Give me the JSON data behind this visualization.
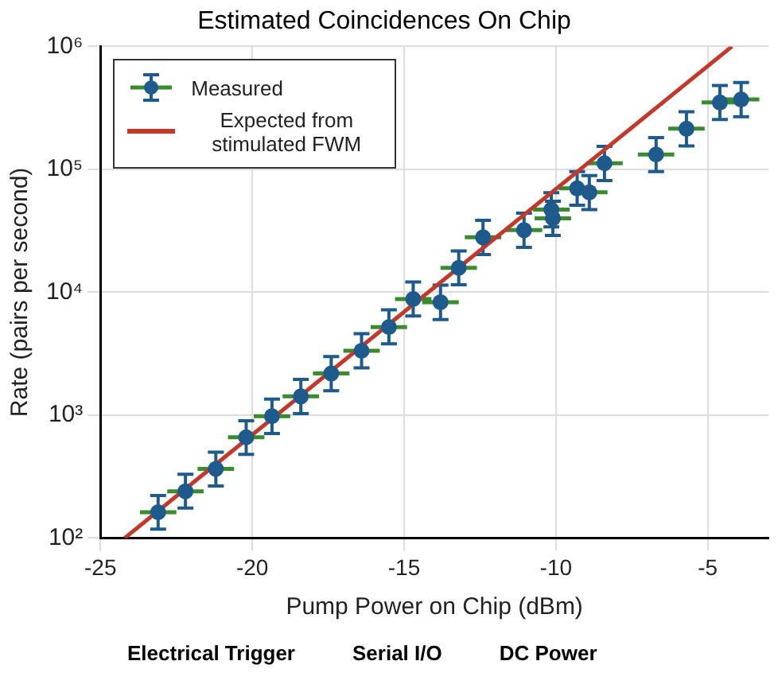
{
  "chart_data": {
    "type": "scatter",
    "title": "Estimated Coincidences On Chip",
    "xlabel": "Pump Power on Chip (dBm)",
    "ylabel": "Rate (pairs per second)",
    "annotations": [
      "Electrical Trigger",
      "Serial I/O",
      "DC Power"
    ],
    "xlim": [
      -25,
      -3
    ],
    "xticks": [
      -25,
      -20,
      -15,
      -10,
      -5
    ],
    "ylim": [
      100,
      1000000
    ],
    "yticks": [
      {
        "value": 100,
        "label": "10²"
      },
      {
        "value": 1000,
        "label": "10³"
      },
      {
        "value": 10000,
        "label": "10⁴"
      },
      {
        "value": 100000,
        "label": "10⁵"
      },
      {
        "value": 1000000,
        "label": "10⁶"
      }
    ],
    "log": "y",
    "grid": true,
    "legend": "top left",
    "series": [
      {
        "name": "Measured",
        "marker": "circle",
        "color": "#1f5a8c",
        "x": [
          -23.1,
          -22.2,
          -21.2,
          -20.2,
          -19.35,
          -18.4,
          -17.4,
          -16.4,
          -15.5,
          -14.7,
          -13.8,
          -13.2,
          -12.4,
          -11.05,
          -10.15,
          -10.1,
          -9.3,
          -8.9,
          -8.4,
          -6.7,
          -5.7,
          -4.6,
          -3.9
        ],
        "values": [
          162,
          240,
          365,
          660,
          980,
          1420,
          2180,
          3340,
          5200,
          8800,
          8300,
          15800,
          28000,
          32000,
          47000,
          40000,
          70000,
          65000,
          112000,
          132000,
          214000,
          350000,
          370000
        ],
        "errors": [
          [
            118,
            222
          ],
          [
            175,
            330
          ],
          [
            265,
            500
          ],
          [
            480,
            900
          ],
          [
            710,
            1350
          ],
          [
            1030,
            1950
          ],
          [
            1580,
            3000
          ],
          [
            2420,
            4600
          ],
          [
            3800,
            7200
          ],
          [
            6400,
            12100
          ],
          [
            6000,
            11400
          ],
          [
            11500,
            21700
          ],
          [
            20300,
            38500
          ],
          [
            23200,
            44000
          ],
          [
            34000,
            64500
          ],
          [
            29000,
            55000
          ],
          [
            51000,
            96000
          ],
          [
            47000,
            89000
          ],
          [
            81000,
            154000
          ],
          [
            96000,
            181000
          ],
          [
            155000,
            294000
          ],
          [
            254000,
            481000
          ],
          [
            268000,
            508000
          ]
        ],
        "xerrors": [
          0.6,
          0.6,
          0.6,
          0.6,
          0.6,
          0.6,
          0.6,
          0.6,
          0.6,
          0.6,
          0.6,
          0.6,
          0.6,
          0.6,
          0.6,
          0.6,
          0.6,
          0.6,
          0.6,
          0.6,
          0.6,
          0.6,
          0.6
        ]
      },
      {
        "name": "Expected from stimulated FWM",
        "type": "line",
        "color": "#c0392b",
        "x": [
          -24.2,
          -4.2
        ],
        "values": [
          100,
          1000000
        ],
        "marker": "none",
        "line_style": "solid"
      }
    ]
  }
}
